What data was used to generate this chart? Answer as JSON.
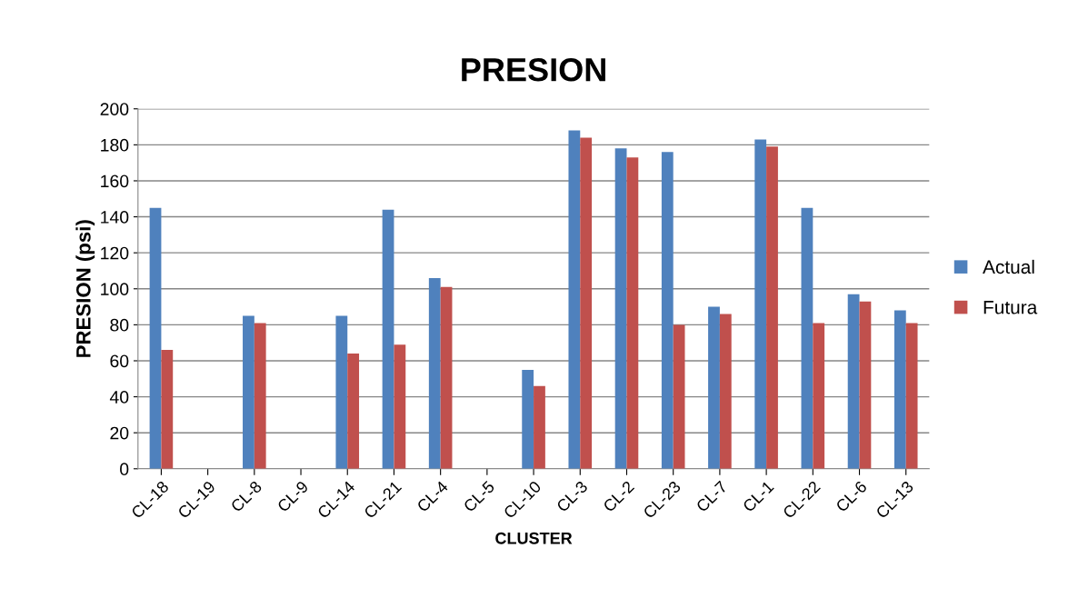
{
  "chart_data": {
    "type": "bar",
    "title": "PRESION",
    "xlabel": "CLUSTER",
    "ylabel": "PRESION (psi)",
    "categories": [
      "CL-18",
      "CL-19",
      "CL-8",
      "CL-9",
      "CL-14",
      "CL-21",
      "CL-4",
      "CL-5",
      "CL-10",
      "CL-3",
      "CL-2",
      "CL-23",
      "CL-7",
      "CL-1",
      "CL-22",
      "CL-6",
      "CL-13"
    ],
    "series": [
      {
        "name": "Actual",
        "color": "#4f81bd",
        "values": [
          145,
          null,
          85,
          null,
          85,
          144,
          106,
          null,
          55,
          188,
          178,
          176,
          90,
          183,
          145,
          97,
          88
        ]
      },
      {
        "name": "Futura",
        "color": "#c0504d",
        "values": [
          66,
          null,
          81,
          null,
          64,
          69,
          101,
          null,
          46,
          184,
          173,
          80,
          86,
          179,
          81,
          93,
          81
        ]
      }
    ],
    "ylim": [
      0,
      200
    ],
    "yticks": [
      0,
      20,
      40,
      60,
      80,
      100,
      120,
      140,
      160,
      180,
      200
    ],
    "grid": "y",
    "legend": "right"
  }
}
